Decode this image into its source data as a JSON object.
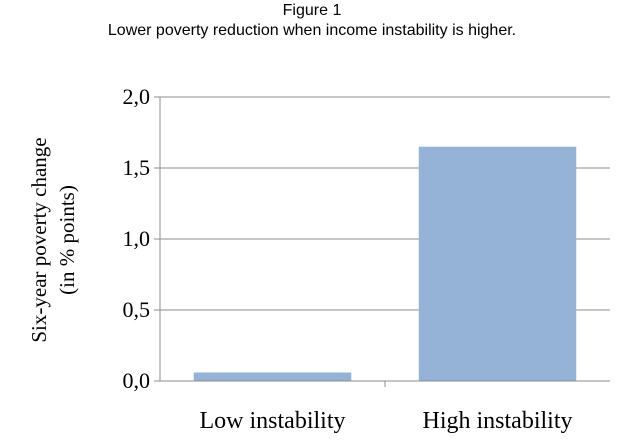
{
  "figure": {
    "label": "Figure 1",
    "caption": "Lower poverty reduction when income instability is higher."
  },
  "chart_data": {
    "type": "bar",
    "categories": [
      "Low instability",
      "High instability"
    ],
    "values": [
      0.06,
      1.65
    ],
    "ylabel_lines": [
      "Six-year poverty change",
      "(in % points)"
    ],
    "ylim": [
      0,
      2
    ],
    "yticks": [
      "0,0",
      "0,5",
      "1,0",
      "1,5",
      "2,0"
    ],
    "grid": true,
    "bar_color": "#95b3d7",
    "legend": false
  }
}
